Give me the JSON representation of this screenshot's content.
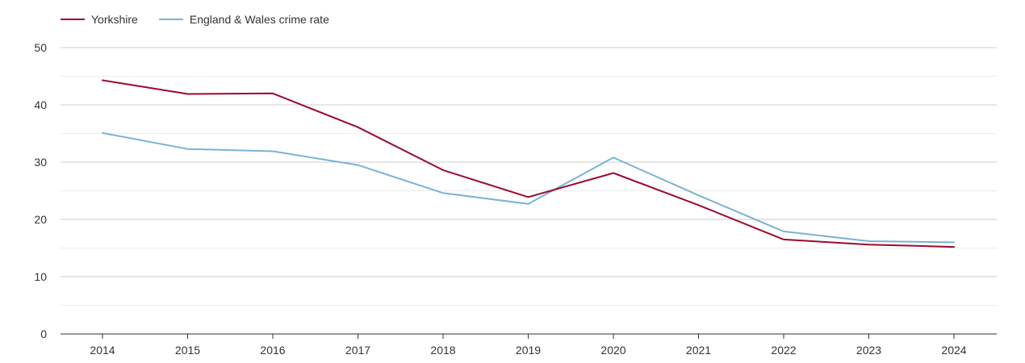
{
  "chart_data": {
    "type": "line",
    "title": "",
    "xlabel": "",
    "ylabel": "",
    "categories": [
      "2014",
      "2015",
      "2016",
      "2017",
      "2018",
      "2019",
      "2020",
      "2021",
      "2022",
      "2023",
      "2024"
    ],
    "ylim": [
      0,
      50
    ],
    "yticks": [
      0,
      10,
      20,
      30,
      40,
      50
    ],
    "grid": true,
    "legend_position": "top-left",
    "series": [
      {
        "name": "Yorkshire",
        "color": "#9b0a2e",
        "values": [
          44.3,
          41.9,
          42.0,
          36.1,
          28.6,
          23.9,
          28.1,
          22.5,
          16.5,
          15.6,
          15.2
        ]
      },
      {
        "name": "England & Wales crime rate",
        "color": "#7ab3d3",
        "values": [
          35.1,
          32.3,
          31.9,
          29.5,
          24.6,
          22.7,
          30.8,
          24.2,
          17.9,
          16.2,
          16.0
        ]
      }
    ]
  }
}
